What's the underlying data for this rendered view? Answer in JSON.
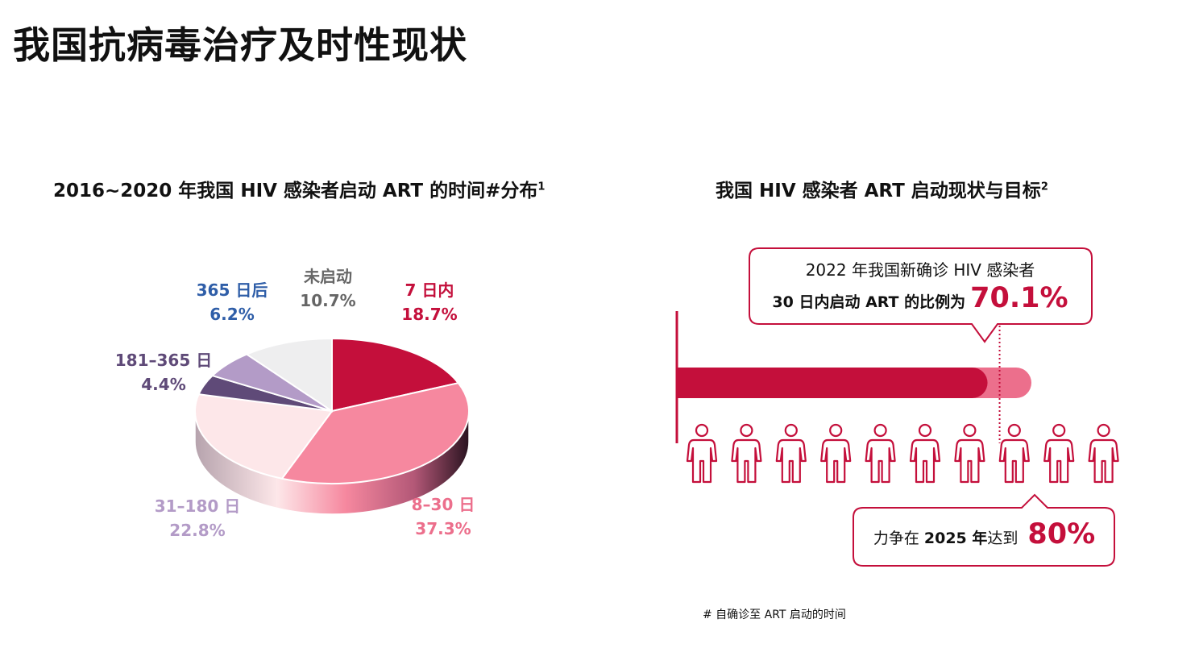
{
  "page": {
    "title": "我国抗病毒治疗及时性现状",
    "footnote": "# 自确诊至 ART 启动的时间"
  },
  "colors": {
    "brand_red": "#c40f3b",
    "light_red": "#ec6f8c",
    "pink": "#f6889f",
    "pale_pink": "#fde7e9",
    "dark_purple": "#5f4a78",
    "lavender": "#b39bc7",
    "light_gray": "#eeeeef",
    "blue_label": "#2f5ea8"
  },
  "chart_data": [
    {
      "type": "pie",
      "title": "2016~2020 年我国 HIV 感染者启动 ART 的时间#分布",
      "title_sup": "1",
      "slices": [
        {
          "line1": "7 日内",
          "line2": "18.7%",
          "value": 18.7,
          "color": "#c40f3b",
          "label_color": "#c40f3b"
        },
        {
          "line1": "8–30 日",
          "line2": "37.3%",
          "value": 37.3,
          "color": "#f6889f",
          "label_color": "#ec6f8c"
        },
        {
          "line1": "31–180 日",
          "line2": "22.8%",
          "value": 22.8,
          "color": "#fde7e9",
          "label_color": "#b39bc7"
        },
        {
          "line1": "181–365 日",
          "line2": "4.4%",
          "value": 4.4,
          "color": "#5f4a78",
          "label_color": "#5f4a78"
        },
        {
          "line1": "365 日后",
          "line2": "6.2%",
          "value": 6.2,
          "color": "#b39bc7",
          "label_color": "#2f5ea8"
        },
        {
          "line1": "未启动",
          "line2": "10.7%",
          "value": 10.7,
          "color": "#eeeeef",
          "label_color": "#666666"
        }
      ]
    },
    {
      "type": "bar",
      "title": "我国 HIV 感染者 ART 启动现状与目标",
      "title_sup": "2",
      "current_value": 70.1,
      "target_value": 80,
      "people_count": 10,
      "callout_current": {
        "line1": "2022 年我国新确诊 HIV 感染者",
        "line2_prefix": "30 日内启动 ART 的比例为",
        "value_text": "70.1%"
      },
      "callout_target": {
        "prefix": "力争在 ",
        "year": "2025 年",
        "suffix": "达到",
        "value_text": "80%"
      }
    }
  ]
}
